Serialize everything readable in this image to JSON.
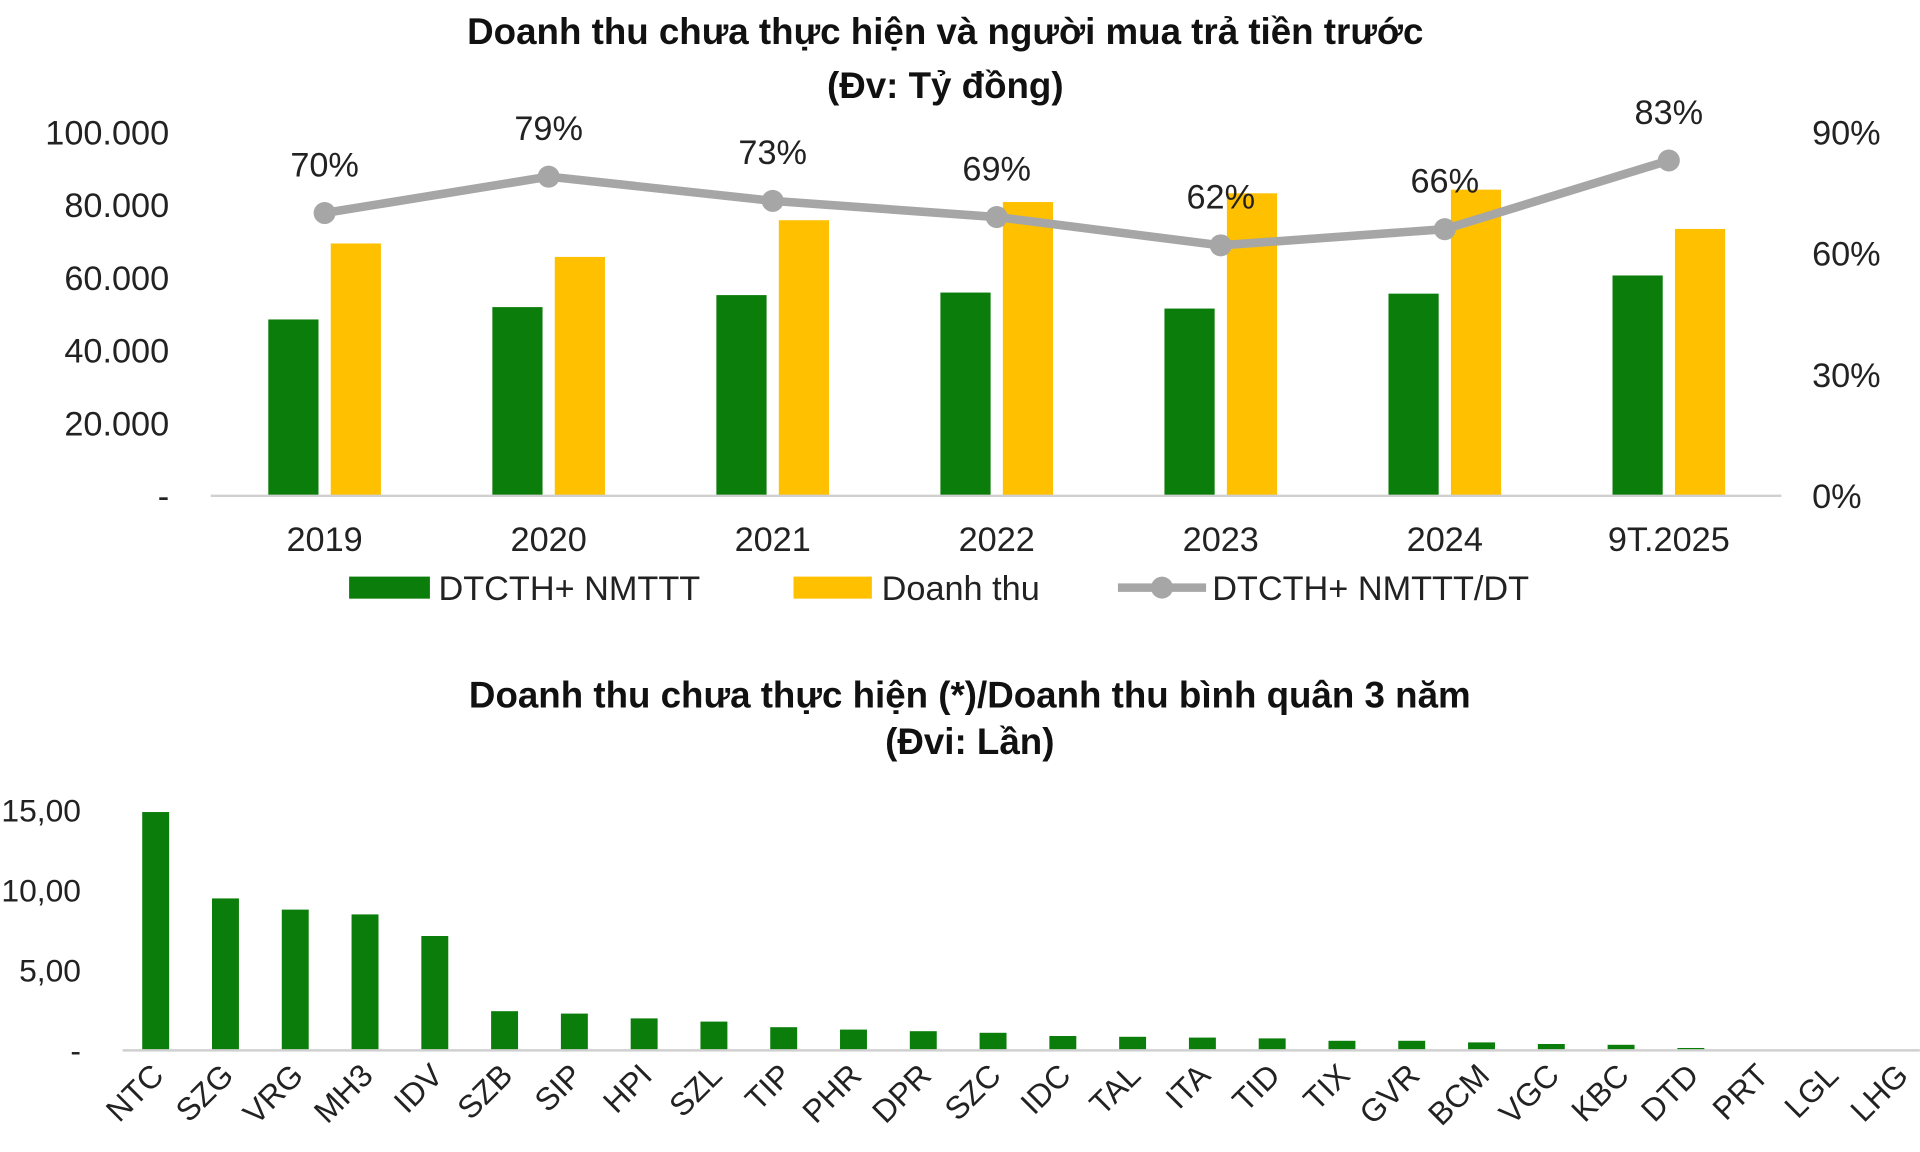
{
  "chart_data": [
    {
      "type": "bar+line",
      "title": "Doanh thu chưa thực hiện và người mua trả tiền trước",
      "subtitle": "(Đv: Tỷ đồng)",
      "categories": [
        "2019",
        "2020",
        "2021",
        "2022",
        "2023",
        "2024",
        "9T.2025"
      ],
      "series": [
        {
          "name": "DTCTH+ NMTTT",
          "kind": "bar",
          "axis": "left",
          "color": "#0a7d0a",
          "values": [
            48500,
            51900,
            55200,
            55900,
            51500,
            55600,
            60600
          ]
        },
        {
          "name": "Doanh thu",
          "kind": "bar",
          "axis": "left",
          "color": "#ffc000",
          "values": [
            69400,
            65700,
            75800,
            80800,
            83200,
            84200,
            73400
          ]
        },
        {
          "name": "DTCTH+ NMTTT/DT",
          "kind": "line",
          "axis": "right",
          "color": "#a6a6a6",
          "values": [
            70,
            79,
            73,
            69,
            62,
            66,
            83
          ],
          "labels": [
            "70%",
            "79%",
            "73%",
            "69%",
            "62%",
            "66%",
            "83%"
          ]
        }
      ],
      "left_axis": {
        "ylim": [
          0,
          100000
        ],
        "ticks": [
          0,
          20000,
          40000,
          60000,
          80000,
          100000
        ],
        "tick_labels": [
          "-",
          "20.000",
          "40.000",
          "60.000",
          "80.000",
          "100.000"
        ]
      },
      "right_axis": {
        "ylim": [
          0,
          90
        ],
        "ticks": [
          0,
          30,
          60,
          90
        ],
        "tick_labels": [
          "0%",
          "30%",
          "60%",
          "90%"
        ]
      },
      "legend": "bottom",
      "grid": false
    },
    {
      "type": "bar",
      "title": "Doanh thu chưa thực hiện (*)/Doanh thu bình quân 3 năm",
      "subtitle": "(Đvi: Lần)",
      "categories": [
        "NTC",
        "SZG",
        "VRG",
        "MH3",
        "IDV",
        "SZB",
        "SIP",
        "HPI",
        "SZL",
        "TIP",
        "PHR",
        "DPR",
        "SZC",
        "IDC",
        "TAL",
        "ITA",
        "TID",
        "TIX",
        "GVR",
        "BCM",
        "VGC",
        "KBC",
        "DTD",
        "PRT",
        "LGL",
        "LHG"
      ],
      "values": [
        14.9,
        9.5,
        8.8,
        8.5,
        7.15,
        2.45,
        2.3,
        2.0,
        1.8,
        1.45,
        1.3,
        1.2,
        1.1,
        0.9,
        0.85,
        0.8,
        0.75,
        0.6,
        0.6,
        0.5,
        0.4,
        0.35,
        0.15,
        0.05,
        0.03,
        0.01
      ],
      "color": "#0a7d0a",
      "ylim": [
        0,
        15
      ],
      "ticks": [
        0,
        5,
        10,
        15
      ],
      "tick_labels": [
        "-",
        "5,00",
        "10,00",
        "15,00"
      ],
      "grid": false
    }
  ]
}
